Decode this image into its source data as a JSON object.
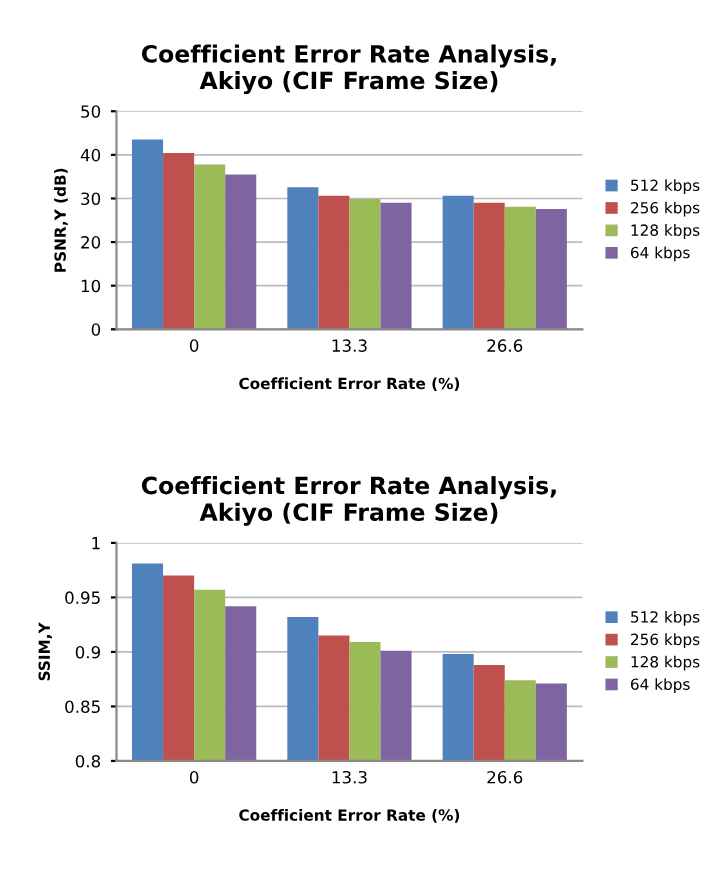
{
  "chart_data": [
    {
      "type": "bar",
      "title": "Coefficient Error Rate Analysis,\nAkiyo (CIF Frame Size)",
      "xlabel": "Coefficient Error Rate (%)",
      "ylabel": "PSNR,Y (dB)",
      "categories": [
        "0",
        "13.3",
        "26.6"
      ],
      "ylim": [
        0,
        50
      ],
      "yticks": [
        0,
        10,
        20,
        30,
        40,
        50
      ],
      "grid": "y",
      "legend": "right",
      "series": [
        {
          "name": "512 kbps",
          "color": "#4f81bd",
          "values": [
            43.5,
            32.6,
            30.6
          ]
        },
        {
          "name": "256 kbps",
          "color": "#c0504d",
          "values": [
            40.4,
            30.6,
            29.0
          ]
        },
        {
          "name": "128 kbps",
          "color": "#9bbb59",
          "values": [
            37.8,
            29.9,
            28.1
          ]
        },
        {
          "name": "64 kbps",
          "color": "#8064a2",
          "values": [
            35.5,
            29.0,
            27.6
          ]
        }
      ]
    },
    {
      "type": "bar",
      "title": "Coefficient Error Rate Analysis,\nAkiyo (CIF Frame Size)",
      "xlabel": "Coefficient Error Rate (%)",
      "ylabel": "SSIM,Y",
      "categories": [
        "0",
        "13.3",
        "26.6"
      ],
      "ylim": [
        0.8,
        1
      ],
      "yticks": [
        0.8,
        0.85,
        0.9,
        0.95,
        1
      ],
      "grid": "y",
      "legend": "right",
      "series": [
        {
          "name": "512 kbps",
          "color": "#4f81bd",
          "values": [
            0.981,
            0.932,
            0.898
          ]
        },
        {
          "name": "256 kbps",
          "color": "#c0504d",
          "values": [
            0.97,
            0.915,
            0.888
          ]
        },
        {
          "name": "128 kbps",
          "color": "#9bbb59",
          "values": [
            0.957,
            0.909,
            0.874
          ]
        },
        {
          "name": "64 kbps",
          "color": "#8064a2",
          "values": [
            0.942,
            0.901,
            0.871
          ]
        }
      ]
    }
  ]
}
